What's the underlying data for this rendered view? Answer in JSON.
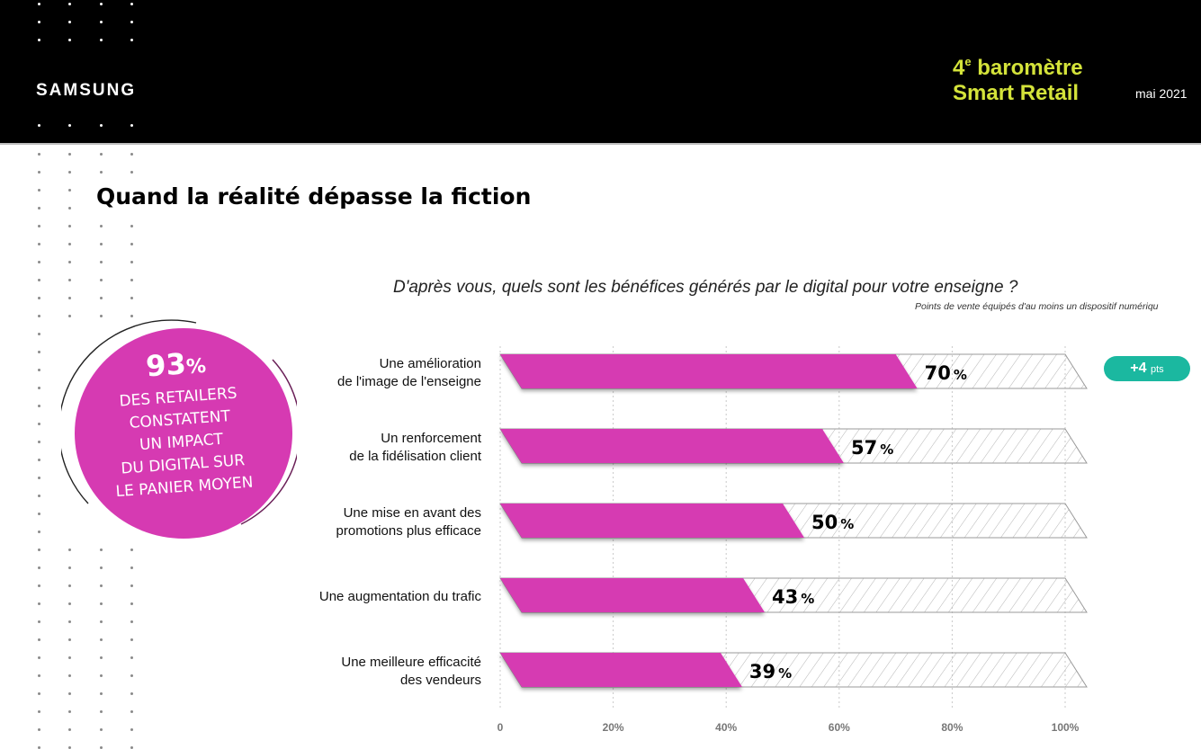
{
  "header": {
    "brand": "SAMSUNG",
    "report_title_line1_prefix": "4",
    "report_title_sup": "e",
    "report_title_line1_rest": " baromètre",
    "report_title_line2": "Smart Retail",
    "date": "mai 2021"
  },
  "page": {
    "title": "Quand la réalité dépasse la fiction"
  },
  "callout": {
    "big_value": "93",
    "big_unit": "%",
    "lines": [
      "DES RETAILERS",
      "CONSTATENT",
      "UN IMPACT",
      "DU DIGITAL SUR",
      "LE PANIER MOYEN"
    ]
  },
  "badge": {
    "value": "+4",
    "unit": "pts"
  },
  "colors": {
    "header_bg": "#000000",
    "accent_yellow": "#d4e33a",
    "bar_magenta": "#d63ab2",
    "badge_teal": "#1bb8a0"
  },
  "chart_data": {
    "type": "bar",
    "orientation": "horizontal",
    "title": "D'après vous, quels sont les bénéfices générés par le digital pour votre enseigne ?",
    "subtitle": "Points de vente équipés d'au moins un dispositif numériqu",
    "categories": [
      [
        "Une amélioration",
        "de l'image de l'enseigne"
      ],
      [
        "Un renforcement",
        "de la fidélisation client"
      ],
      [
        "Une mise en avant des",
        "promotions plus efficace"
      ],
      [
        "Une augmentation du trafic"
      ],
      [
        "Une meilleure efficacité",
        "des vendeurs"
      ]
    ],
    "values": [
      70,
      57,
      50,
      43,
      39
    ],
    "value_labels": [
      "70",
      "57",
      "50",
      "43",
      "39"
    ],
    "value_unit": "%",
    "xlim": [
      0,
      100
    ],
    "xticks": [
      0,
      20,
      40,
      60,
      80,
      100
    ],
    "xtick_labels": [
      "0",
      "20%",
      "40%",
      "60%",
      "80%",
      "100%"
    ],
    "grid": "vertical dotted"
  }
}
